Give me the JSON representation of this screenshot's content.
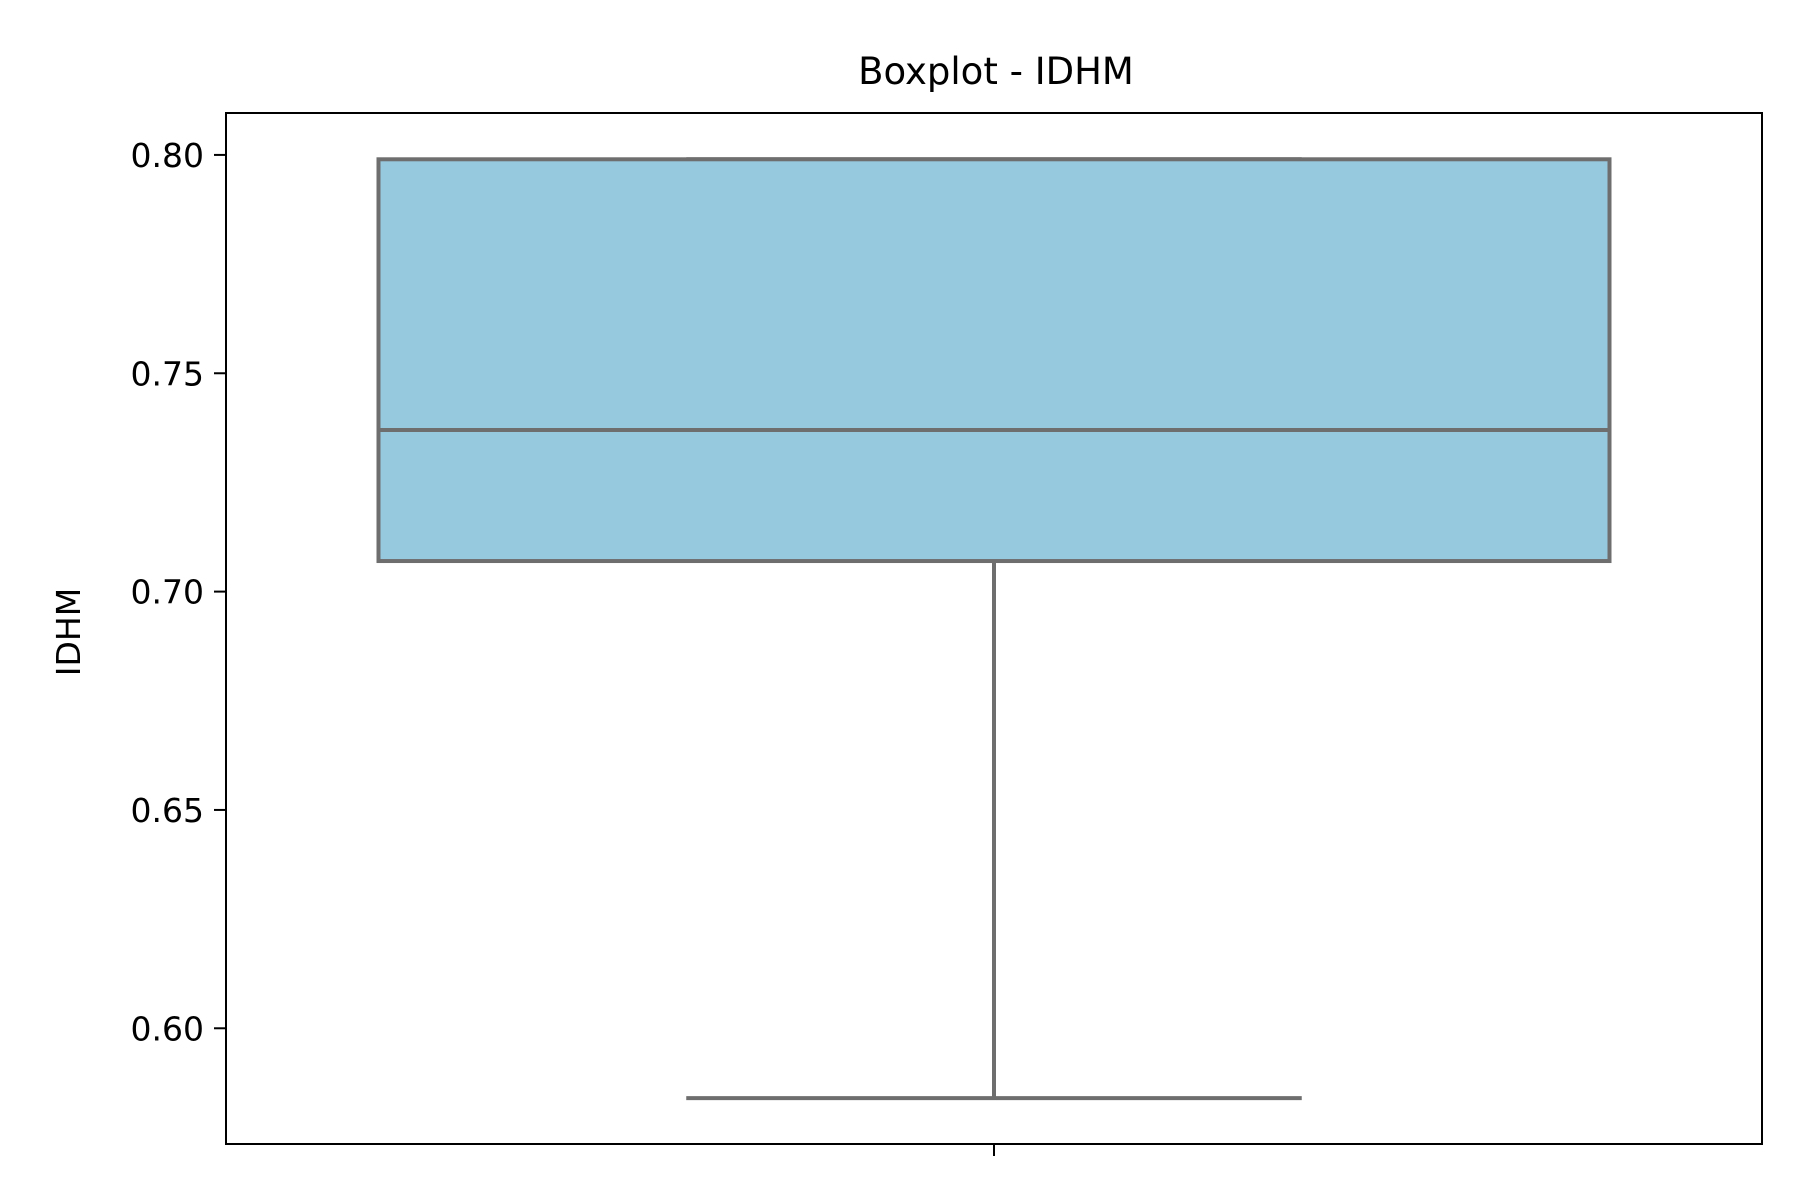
{
  "chart_data": {
    "type": "box",
    "title": "Boxplot - IDHM",
    "xlabel": "",
    "ylabel": "IDHM",
    "ylim": [
      0.5735,
      0.8096
    ],
    "yticks": [
      0.6,
      0.65,
      0.7,
      0.75,
      0.8
    ],
    "ytick_labels": [
      "0.60",
      "0.65",
      "0.70",
      "0.75",
      "0.80"
    ],
    "grid": false,
    "series": [
      {
        "min": 0.584,
        "q1": 0.707,
        "median": 0.737,
        "q3": 0.799,
        "max": 0.799
      }
    ],
    "colors": {
      "box_fill": "#96c8de",
      "box_edge": "#6e6e6e",
      "axes": "#000000"
    }
  }
}
